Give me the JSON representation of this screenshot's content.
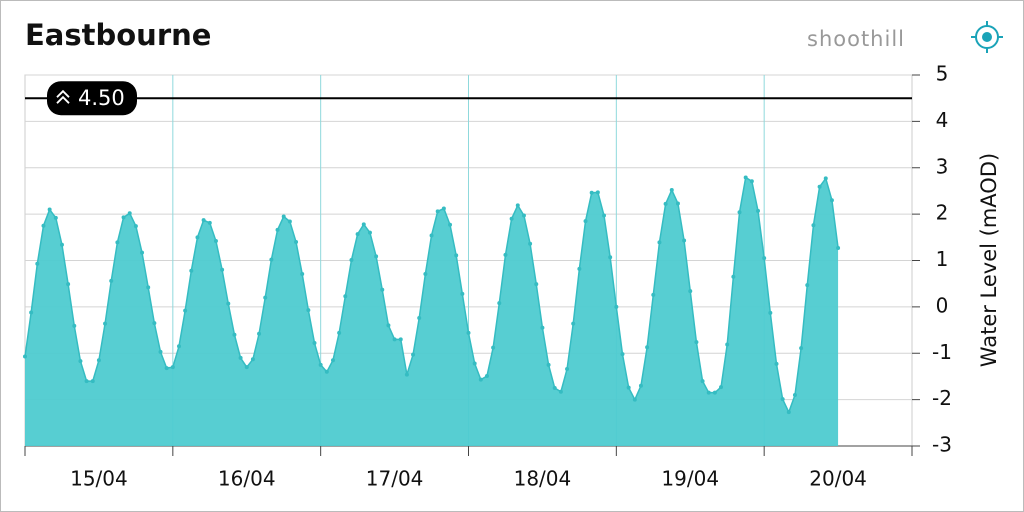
{
  "chart_data": {
    "type": "area",
    "title": "Eastbourne",
    "brand": "shoothill",
    "y_label": "Water Level (mAOD)",
    "categories": [
      null,
      null,
      null,
      null,
      null,
      null,
      null,
      null,
      null,
      null,
      null,
      null,
      "15/04",
      null,
      null,
      null,
      null,
      null,
      null,
      null,
      null,
      null,
      null,
      null,
      null,
      null,
      null,
      null,
      null,
      null,
      null,
      null,
      null,
      null,
      null,
      null,
      "16/04",
      null,
      null,
      null,
      null,
      null,
      null,
      null,
      null,
      null,
      null,
      null,
      null,
      null,
      null,
      null,
      null,
      null,
      null,
      null,
      null,
      null,
      null,
      null,
      "17/04",
      null,
      null,
      null,
      null,
      null,
      null,
      null,
      null,
      null,
      null,
      null,
      null,
      null,
      null,
      null,
      null,
      null,
      null,
      null,
      null,
      null,
      null,
      null,
      "18/04",
      null,
      null,
      null,
      null,
      null,
      null,
      null,
      null,
      null,
      null,
      null,
      null,
      null,
      null,
      null,
      null,
      null,
      null,
      null,
      null,
      null,
      null,
      null,
      "19/04",
      null,
      null,
      null,
      null,
      null,
      null,
      null,
      null,
      null,
      null,
      null,
      null,
      null,
      null,
      null,
      null,
      null,
      null,
      null,
      null,
      null,
      null,
      null,
      "20/04"
    ],
    "series": [
      {
        "name": "Water Level",
        "color": "#4ecbd0",
        "point_color": "#35bcc2",
        "values": [
          -1.07,
          -0.12,
          0.93,
          1.75,
          2.1,
          1.92,
          1.34,
          0.49,
          -0.41,
          -1.17,
          -1.6,
          -1.6,
          -1.15,
          -0.36,
          0.56,
          1.39,
          1.93,
          2.02,
          1.74,
          1.17,
          0.42,
          -0.35,
          -0.97,
          -1.32,
          -1.3,
          -0.85,
          -0.08,
          0.78,
          1.5,
          1.87,
          1.81,
          1.42,
          0.8,
          0.07,
          -0.6,
          -1.1,
          -1.3,
          -1.13,
          -0.58,
          0.2,
          1.02,
          1.66,
          1.95,
          1.84,
          1.4,
          0.71,
          -0.07,
          -0.78,
          -1.25,
          -1.4,
          -1.15,
          -0.56,
          0.23,
          1.01,
          1.57,
          1.78,
          1.6,
          1.09,
          0.37,
          -0.4,
          -0.7,
          -0.7,
          -1.46,
          -1.03,
          -0.24,
          0.71,
          1.54,
          2.06,
          2.12,
          1.77,
          1.11,
          0.28,
          -0.56,
          -1.22,
          -1.57,
          -1.49,
          -0.88,
          0.08,
          1.12,
          1.9,
          2.19,
          1.97,
          1.36,
          0.49,
          -0.45,
          -1.25,
          -1.75,
          -1.83,
          -1.34,
          -0.36,
          0.82,
          1.85,
          2.46,
          2.47,
          1.97,
          1.07,
          0.0,
          -1.02,
          -1.74,
          -2.0,
          -1.7,
          -0.87,
          0.26,
          1.39,
          2.22,
          2.52,
          2.23,
          1.43,
          0.34,
          -0.76,
          -1.6,
          -1.85,
          -1.85,
          -1.73,
          -0.81,
          0.65,
          2.04,
          2.79,
          2.71,
          2.07,
          1.05,
          -0.13,
          -1.23,
          -1.99,
          -2.27,
          -1.9,
          -0.89,
          0.47,
          1.76,
          2.59,
          2.77,
          2.3,
          1.27
        ]
      }
    ],
    "threshold": {
      "value": 4.5,
      "label": "4.50"
    },
    "ylim": [
      -3,
      5
    ],
    "yticks": [
      -3,
      -2,
      -1,
      0,
      1,
      2,
      3,
      4,
      5
    ],
    "grid": true
  }
}
